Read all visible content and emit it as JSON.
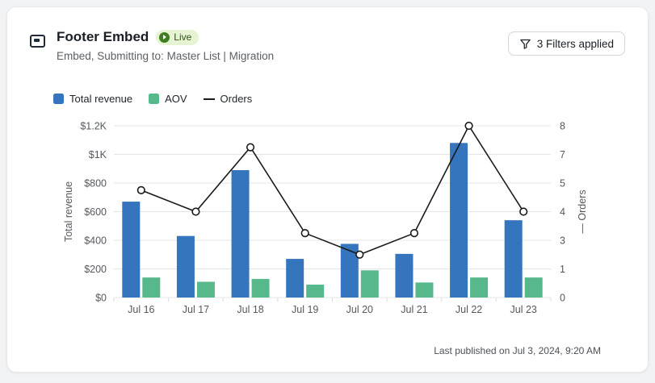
{
  "header": {
    "title": "Footer Embed",
    "badge": "Live",
    "subtitle": "Embed, Submitting to: Master List | Migration",
    "filter_button": "3 Filters applied"
  },
  "colors": {
    "revenue_bar": "#3575bd",
    "aov_bar": "#56b88b",
    "orders_line": "#1a1a1a",
    "gridline": "#e4e5e7",
    "axis_text": "#55585e",
    "badge_bg": "#e7f4d4",
    "badge_dot": "#3e7d22"
  },
  "legend": [
    {
      "label": "Total revenue",
      "swatch": "square",
      "color": "#3575bd"
    },
    {
      "label": "AOV",
      "swatch": "square",
      "color": "#56b88b"
    },
    {
      "label": "Orders",
      "swatch": "line",
      "color": "#1a1a1a"
    }
  ],
  "chart_data": {
    "type": "bar",
    "subtype": "grouped bars with line overlay (dual axis)",
    "categories": [
      "Jul 16",
      "Jul 17",
      "Jul 18",
      "Jul 19",
      "Jul 20",
      "Jul 21",
      "Jul 22",
      "Jul 23"
    ],
    "series": [
      {
        "name": "Total revenue",
        "type": "bar",
        "axis": "left",
        "color": "#3575bd",
        "values": [
          670,
          430,
          890,
          270,
          375,
          305,
          1080,
          540
        ]
      },
      {
        "name": "AOV",
        "type": "bar",
        "axis": "left",
        "color": "#56b88b",
        "values": [
          140,
          110,
          130,
          90,
          190,
          105,
          140,
          140
        ]
      },
      {
        "name": "Orders",
        "type": "line",
        "axis": "right",
        "color": "#1a1a1a",
        "values": [
          5,
          4,
          7,
          3,
          2,
          3,
          8,
          4
        ]
      }
    ],
    "left_axis": {
      "label": "Total revenue",
      "range": [
        0,
        1200
      ],
      "ticks": [
        "$0",
        "$200",
        "$400",
        "$600",
        "$800",
        "$1K",
        "$1.2K"
      ]
    },
    "right_axis": {
      "label": "— Orders",
      "range": [
        0,
        8
      ],
      "ticks": [
        "0",
        "1",
        "3",
        "4",
        "5",
        "7",
        "8"
      ]
    },
    "grid": true,
    "legend_position": "top-left"
  },
  "footer": {
    "last_published": "Last published on Jul 3, 2024, 9:20 AM"
  }
}
